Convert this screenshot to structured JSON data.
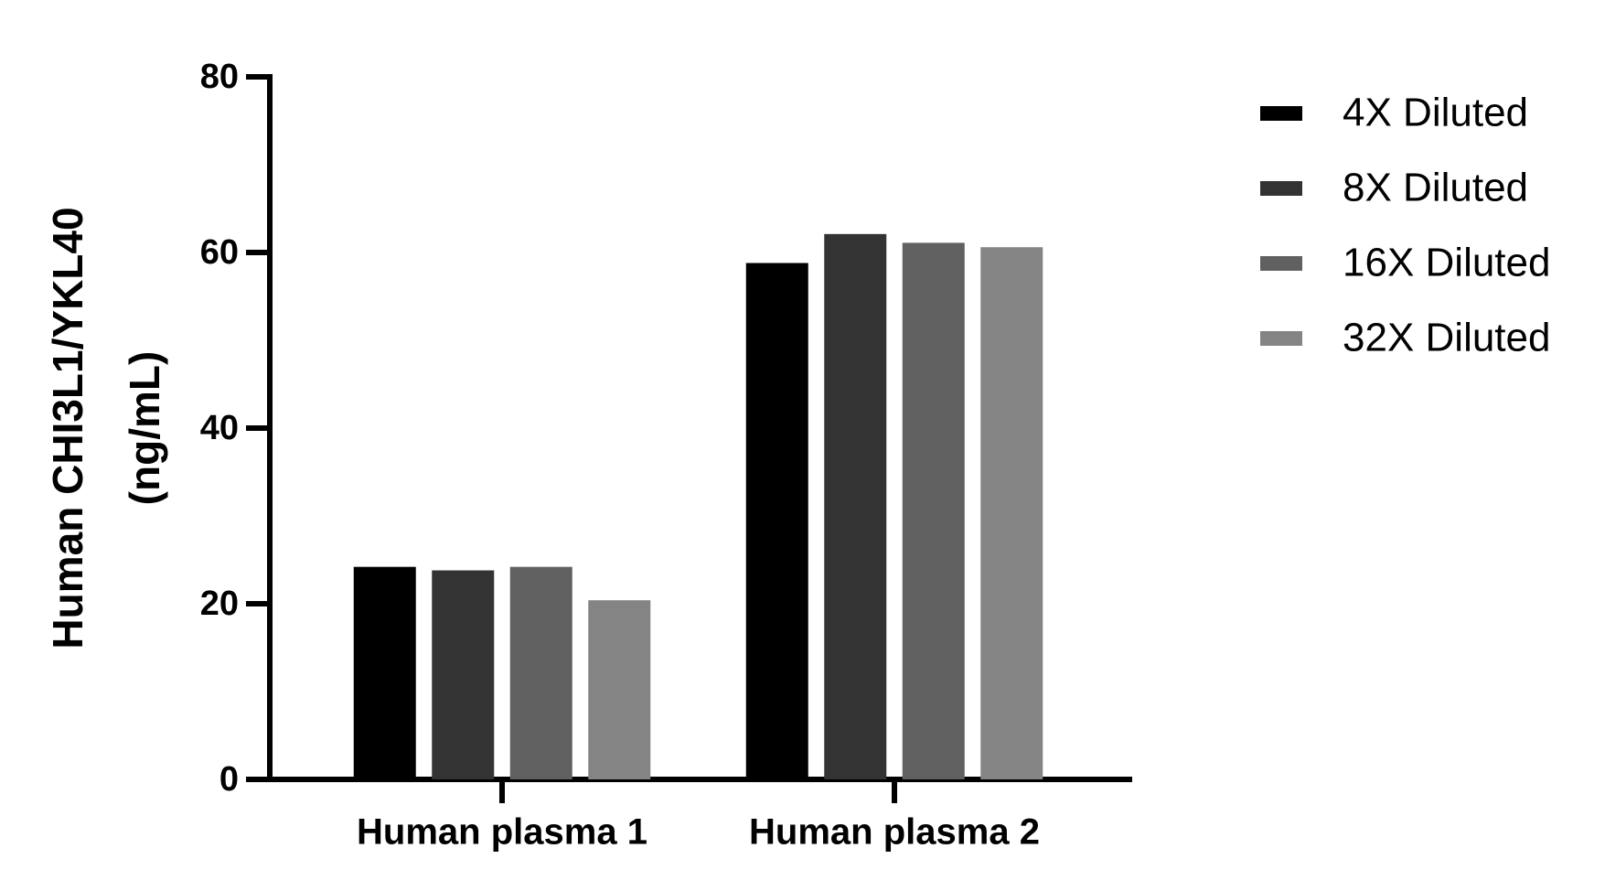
{
  "chart_data": {
    "type": "bar",
    "ylabel": [
      "Human CHI3L1/YKL40",
      "(ng/mL)"
    ],
    "categories": [
      "Human plasma 1",
      "Human plasma 2"
    ],
    "series": [
      {
        "name": "4X Diluted",
        "color": "#000000",
        "values": [
          24.2,
          58.8
        ]
      },
      {
        "name": "8X Diluted",
        "color": "#333333",
        "values": [
          23.8,
          62.1
        ]
      },
      {
        "name": "16X Diluted",
        "color": "#606060",
        "values": [
          24.2,
          61.1
        ]
      },
      {
        "name": "32X Diluted",
        "color": "#848484",
        "values": [
          20.4,
          60.6
        ]
      }
    ],
    "ylim": [
      0,
      80
    ],
    "yticks": [
      0,
      20,
      40,
      60,
      80
    ],
    "legend": "right"
  }
}
